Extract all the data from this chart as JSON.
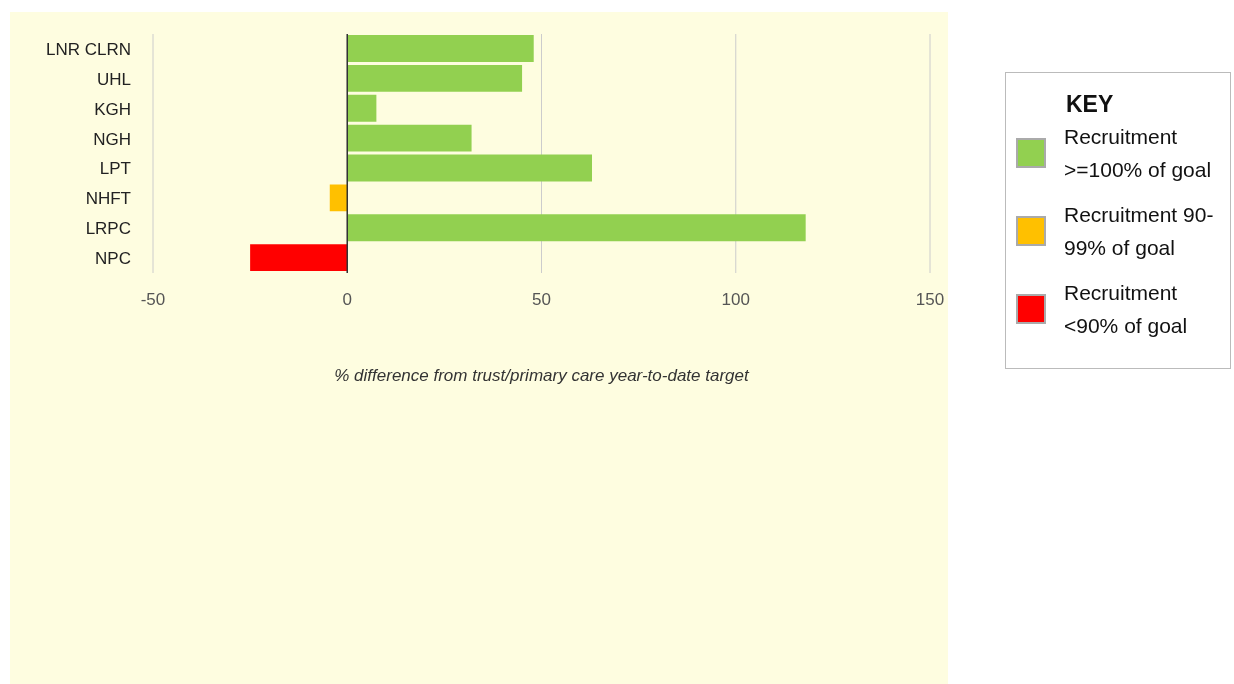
{
  "chart_data": {
    "type": "bar",
    "orientation": "horizontal",
    "stacked": true,
    "categories": [
      "LNR CLRN",
      "UHL",
      "KGH",
      "NGH",
      "LPT",
      "NHFT",
      "LRPC",
      "NPC"
    ],
    "series": [
      {
        "name": "Recruitment >=100% of goal",
        "color": "#92d050",
        "values": [
          48,
          45,
          7.5,
          32,
          63,
          null,
          118,
          null
        ]
      },
      {
        "name": "Recruitment 90-99% of goal",
        "color": "#ffc000",
        "values": [
          null,
          null,
          null,
          null,
          null,
          -4.5,
          null,
          null
        ]
      },
      {
        "name": "Recruitment <90% of goal",
        "color": "#ff0000",
        "values": [
          null,
          null,
          null,
          null,
          null,
          null,
          null,
          -25
        ]
      }
    ],
    "xlim": [
      -50,
      150
    ],
    "xticks": [
      -50,
      0,
      50,
      100,
      150
    ],
    "xlabel": "% difference from trust/primary care year-to-date target",
    "legend_title": "KEY",
    "legend": "right",
    "grid": "x",
    "ref_lines": [
      {
        "axis": "x",
        "value": 0,
        "color": "#333333"
      }
    ]
  }
}
